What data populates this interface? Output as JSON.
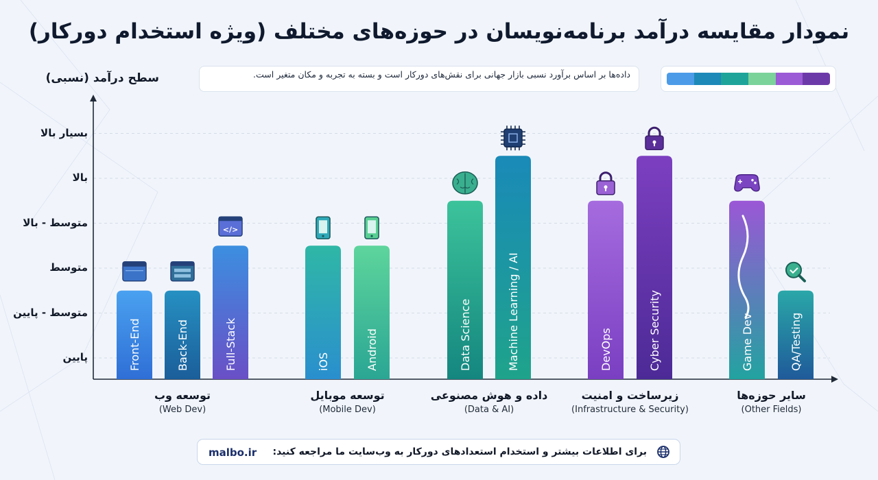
{
  "title": "نمودار مقایسه درآمد برنامه‌نویسان در حوزه‌های مختلف (ویژه استخدام دورکار)",
  "note": "داده‌ها بر اساس برآورد نسبی بازار جهانی برای نقش‌های دورکار است و بسته به تجربه و مکان متغیر است.",
  "legend_colors": [
    "#4c9be8",
    "#1d89b8",
    "#1fa49a",
    "#7bd39a",
    "#9b5bd6",
    "#6c3aa8"
  ],
  "footer": {
    "site": "malbo.ir",
    "message": "برای اطلاعات بیشتر و استخدام استعدادهای دورکار به وب‌سایت ما مراجعه کنید:",
    "icon": "globe-icon"
  },
  "chart_data": {
    "type": "bar",
    "title": "نمودار مقایسه درآمد برنامه‌نویسان در حوزه‌های مختلف (ویژه استخدام دورکار)",
    "ylabel": "سطح درآمد (نسبی)",
    "xlabel": "",
    "y_levels": [
      "پایین",
      "متوسط - پایین",
      "متوسط",
      "متوسط - بالا",
      "بالا",
      "بسیار بالا"
    ],
    "ylim": [
      0,
      6.6
    ],
    "groups": [
      {
        "fa": "توسعه وب",
        "en": "(Web Dev)",
        "bars": [
          {
            "label": "Front-End",
            "value": 2.5,
            "icon": "browser-window-icon",
            "colors": [
              "#4aa1f0",
              "#2f6fd6"
            ]
          },
          {
            "label": "Back-End",
            "value": 2.5,
            "icon": "server-window-icon",
            "colors": [
              "#2690c2",
              "#1b5e9a"
            ]
          },
          {
            "label": "Full-Stack",
            "value": 3.5,
            "icon": "code-window-icon",
            "colors": [
              "#3c8fe0",
              "#6a4fc6"
            ]
          }
        ]
      },
      {
        "fa": "توسعه موبایل",
        "en": "(Mobile Dev)",
        "bars": [
          {
            "label": "iOS",
            "value": 3.5,
            "icon": "smartphone-icon",
            "colors": [
              "#2fb7a6",
              "#2a8fce"
            ]
          },
          {
            "label": "Android",
            "value": 3.5,
            "icon": "android-phone-icon",
            "colors": [
              "#5ed59c",
              "#2aa694"
            ]
          }
        ]
      },
      {
        "fa": "داده و هوش مصنوعی",
        "en": "(Data & AI)",
        "bars": [
          {
            "label": "Data Science",
            "value": 4.5,
            "icon": "brain-icon",
            "colors": [
              "#3cc39b",
              "#14867f"
            ]
          },
          {
            "label": "Machine Learning / AI",
            "value": 5.5,
            "icon": "chip-icon",
            "colors": [
              "#1a8ab8",
              "#1fa38b"
            ]
          }
        ]
      },
      {
        "fa": "زیرساخت و امنیت",
        "en": "(Infrastructure & Security)",
        "bars": [
          {
            "label": "DevOps",
            "value": 4.5,
            "icon": "lock-icon",
            "colors": [
              "#a56bde",
              "#7a3fc2"
            ]
          },
          {
            "label": "Cyber Security",
            "value": 5.5,
            "icon": "padlock-icon",
            "colors": [
              "#7c3fc0",
              "#4c2a96"
            ]
          }
        ]
      },
      {
        "fa": "سایر حوزه‌ها",
        "en": "(Other Fields)",
        "bars": [
          {
            "label": "Game Dev",
            "value": 4.5,
            "icon": "gamepad-icon",
            "colors": [
              "#9b57d6",
              "#22a3a0"
            ]
          },
          {
            "label": "QA/Testing",
            "value": 2.5,
            "icon": "magnifier-check-icon",
            "colors": [
              "#2aa7a8",
              "#1f5a9a"
            ]
          }
        ]
      }
    ]
  }
}
